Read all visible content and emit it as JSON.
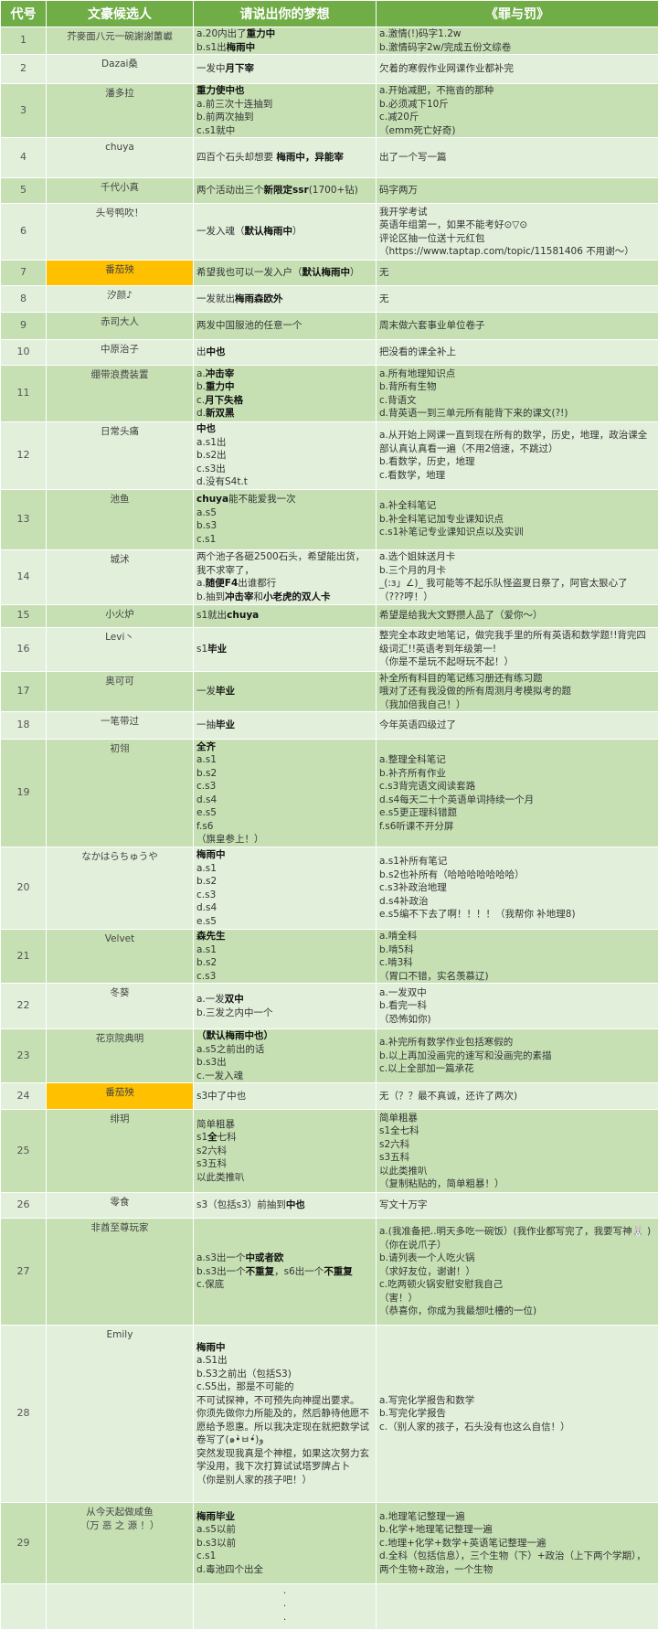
{
  "header": {
    "code": "代号",
    "candidate": "文豪候选人",
    "dream": "请说出你的梦想",
    "crime": "《罪与罚》"
  },
  "colors": {
    "header": "#70ad47",
    "row_dark": "#c6e0b4",
    "row_light": "#e2efda",
    "highlight": "#ffc000"
  },
  "rows": [
    {
      "num": "1",
      "name": [
        "芥麥面八元一碗謝謝蕙巘"
      ],
      "dream": [
        "a.20内出了**重力中**",
        "b.s1出**梅雨中**"
      ],
      "crime": [
        "a.激情(!)码字1.2w",
        "b.激情码字2w/完成五份文综卷"
      ]
    },
    {
      "num": "2",
      "name": [
        "Dazai桑"
      ],
      "dream": [
        "一发中**月下宰**"
      ],
      "crime": [
        "欠着的寒假作业网课作业都补完"
      ]
    },
    {
      "num": "3",
      "name": [
        "潘多拉"
      ],
      "dream": [
        "**重力使中也**",
        "a.前三次十连抽到",
        "b.前两次抽到",
        "c.s1就中"
      ],
      "crime": [
        "a.开始减肥，不拖沓的那种",
        "b.必须减下10斤",
        "c.减20斤",
        "（emm死亡好奇)"
      ]
    },
    {
      "num": "4",
      "name": [
        "chuya"
      ],
      "dream": [
        "四百个石头却想要 **梅雨中，异能宰**"
      ],
      "crime": [
        "出了一个写一篇"
      ]
    },
    {
      "num": "5",
      "name": [
        "千代小真"
      ],
      "dream": [
        "两个活动出三个**新限定ssr**(1700+钻)"
      ],
      "crime": [
        "码字两万"
      ]
    },
    {
      "num": "6",
      "name": [
        "头号鸭吹！"
      ],
      "dream": [
        "一发入魂（**默认梅雨中**）"
      ],
      "crime": [
        "我开学考试",
        "英语年组第一，如果不能考好⊙▽⊙",
        "评论区抽一位送十元红包",
        "（https://www.taptap.com/topic/11581406 不用谢～）"
      ]
    },
    {
      "num": "7",
      "name": [
        "番茄殃"
      ],
      "highlight": true,
      "dream": [
        "希望我也可以一发入户（**默认梅雨中**）"
      ],
      "crime": [
        "无"
      ]
    },
    {
      "num": "8",
      "name": [
        "汐颜♪"
      ],
      "dream": [
        "一发就出**梅雨森欧外**"
      ],
      "crime": [
        "无"
      ]
    },
    {
      "num": "9",
      "name": [
        "赤司大人"
      ],
      "dream": [
        "两发中国服池的任意一个"
      ],
      "crime": [
        "周末做六套事业单位卷子"
      ]
    },
    {
      "num": "10",
      "name": [
        "中原治子"
      ],
      "dream": [
        "出**中也**"
      ],
      "crime": [
        "把没看的课全补上"
      ]
    },
    {
      "num": "11",
      "name": [
        "绷带浪费装置"
      ],
      "dream": [
        "a.**冲击宰**",
        "b.**重力中**",
        "c.**月下失格**",
        "d.**新双黑**"
      ],
      "crime": [
        "a.所有地理知识点",
        "b.背所有生物",
        "c.背语文",
        "d.背英语一到三单元所有能背下来的课文(?!)"
      ]
    },
    {
      "num": "12",
      "name": [
        "日常头痛"
      ],
      "dream": [
        "**中也**",
        "a.s1出",
        "b.s2出",
        "c.s3出",
        "d.没有S4t.t"
      ],
      "crime": [
        "a.从开始上网课一直到现在所有的数学，历史，地理，政治课全部认真认真看一遍（不用2倍速，不跳过）",
        "b.看数学，历史，地理",
        "c.看数学，地理"
      ]
    },
    {
      "num": "13",
      "name": [
        "池鱼"
      ],
      "dream": [
        "**chuya**能不能爱我一次",
        "a.s5",
        "b.s3",
        "c.s1"
      ],
      "crime": [
        "a.补全科笔记",
        "b.补全科笔记加专业课知识点",
        "c.s1补笔记专业课知识点以及实训"
      ]
    },
    {
      "num": "14",
      "name": [
        "城沭"
      ],
      "dream": [
        "两个池子各砸2500石头，希望能出货，我不求宰了，",
        "a.**随便F4**出谁都行",
        "b.抽到**冲击宰**和**小老虎的双人卡**"
      ],
      "crime": [
        "a.选个姐妹送月卡",
        "b.三个月的月卡",
        "_(:з」∠)_ 我可能等不起乐队怪盗夏日祭了，阿官太狠心了 （???哼！）"
      ]
    },
    {
      "num": "15",
      "name": [
        "小火炉"
      ],
      "dream": [
        "s1就出**chuya**"
      ],
      "crime": [
        "希望是给我大文野攒人品了（爱你～）"
      ]
    },
    {
      "num": "16",
      "name": [
        "Levi丶"
      ],
      "dream": [
        "s1**毕业**"
      ],
      "crime": [
        "整完全本政史地笔记，做完我手里的所有英语和数学题!!背完四级词汇!!英语考到年级第一!",
        "（你是不是玩不起呀玩不起！）"
      ]
    },
    {
      "num": "17",
      "name": [
        "奥可可"
      ],
      "dream": [
        "一发**毕业**"
      ],
      "crime": [
        "补全所有科目的笔记练习册还有练习题",
        "哦对了还有我没做的所有周测月考模拟考的题",
        "（我加倍我自己！）"
      ]
    },
    {
      "num": "18",
      "name": [
        "一笔带过"
      ],
      "dream": [
        "一抽**毕业**"
      ],
      "crime": [
        "今年英语四级过了"
      ]
    },
    {
      "num": "19",
      "name": [
        "初翎"
      ],
      "dream": [
        "**全齐**",
        "a.s1",
        "b.s2",
        "c.s3",
        "d.s4",
        "e.s5",
        "f.s6",
        "（旗皇参上！）"
      ],
      "crime": [
        "a.整理全科笔记",
        "b.补齐所有作业",
        "c.s3背完语文阅读套路",
        "d.s4每天二十个英语单词持续一个月",
        "e.s5更正理科错题",
        "f.s6听课不开分屏"
      ]
    },
    {
      "num": "20",
      "name": [
        "なかはらちゅうや"
      ],
      "dream": [
        "**梅雨中**",
        "a.s1",
        "b.s2",
        "c.s3",
        "d.s4",
        "e.s5"
      ],
      "crime": [
        "a.s1补所有笔记",
        "b.s2也补所有（哈哈哈哈哈哈哈）",
        "c.s3补政治地理",
        "d.s4补政治",
        "e.s5编不下去了啊！！！！（我帮你 补地理8)"
      ]
    },
    {
      "num": "21",
      "name": [
        "Velvet"
      ],
      "dream": [
        "**森先生**",
        "a.s1",
        "b.s2",
        "c.s3"
      ],
      "crime": [
        "a.啃全科",
        "b.啃5科",
        "c.啃3科",
        "（胃口不错，实名羡慕辽)"
      ]
    },
    {
      "num": "22",
      "name": [
        "冬葵"
      ],
      "dream": [
        "a.一发**双中**",
        "b.三发之内中一个"
      ],
      "crime": [
        "a.一发双中",
        "b.看完一科",
        "（恐怖如你)"
      ]
    },
    {
      "num": "23",
      "name": [
        "花京院典明"
      ],
      "dream": [
        "**（默认梅雨中也）**",
        "a.s5之前出的话",
        "b.s3出",
        "c.一发入魂"
      ],
      "crime": [
        "a.补完所有数学作业包括寒假的",
        "b.以上再加没画完的速写和没画完的素描",
        "c.以上全部加一篇承花"
      ]
    },
    {
      "num": "24",
      "name": [
        "番茄殃"
      ],
      "highlight": true,
      "dream": [
        "s3中了中也"
      ],
      "crime": [
        "无（？？最不真诚，还许了两次)"
      ]
    },
    {
      "num": "25",
      "name": [
        "绯玥"
      ],
      "dream": [
        "简单粗暴",
        "s1**全**七科",
        "s2六科",
        "s3五科",
        "以此类推叭"
      ],
      "crime": [
        "简单粗暴",
        "s1全七科",
        "s2六科",
        "s3五科",
        "以此类推叭",
        "（复制粘贴的，简单粗暴！）"
      ]
    },
    {
      "num": "26",
      "name": [
        "零食"
      ],
      "dream": [
        "s3（包括s3）前抽到**中也**"
      ],
      "crime": [
        "写文十万字"
      ]
    },
    {
      "num": "27",
      "name": [
        "非酋至尊玩家"
      ],
      "dream": [
        "a.s3出一个**中或者欧**",
        "b.s3出一个**不重复**，s6出一个**不重复**",
        "c.保底"
      ],
      "crime": [
        "a.(我准备把..明天多吃一碗饭）(我作业都写完了，我要写神🐰 )",
        "（你在说爪子）",
        "b.请列表一个人吃火锅",
        "（求好友位，谢谢！）",
        "c.吃两顿火锅安慰安慰我自己",
        "（害！）",
        "（恭喜你，你成为我最想吐槽的一位)"
      ]
    },
    {
      "num": "28",
      "name": [
        "Emily"
      ],
      "dream": [
        "**梅雨中**",
        "a.S1出",
        "b.S3之前出（包括S3)",
        "c.S5出，那是不可能的",
        "不可试探神，不可预先向神提出要求。",
        "你须先做你力所能及的，然后静待他愿不愿给予恩惠。所以我决定现在就把数学试卷写了(๑•̀ㅂ•́)و",
        "突然发现我真是个神棍，如果这次努力玄学没用，我下次打算试试塔罗牌占卜",
        "（你是别人家的孩子吧！）"
      ],
      "crime": [
        "a.写完化学报告和数学",
        "b.写完化学报告",
        "c.（别人家的孩子，石头没有也这么自信！）"
      ]
    },
    {
      "num": "29",
      "name": [
        "从今天起做咸鱼",
        "（万 恶 之 源 ！）"
      ],
      "dream": [
        "**梅雨毕业**",
        "a.s5以前",
        "b.s3以前",
        "c.s1",
        "d.毒池四个出全"
      ],
      "crime": [
        "a.地理笔记整理一遍",
        "b.化学+地理笔记整理一遍",
        "c.地理+化学+数学+英语笔记整理一遍",
        "d.全科（包括信息），三个生物（下）+政治（上下两个学期），两个生物+政治，一个生物"
      ]
    }
  ],
  "continuation": {
    "dots": [
      "·",
      "·",
      "·"
    ]
  }
}
